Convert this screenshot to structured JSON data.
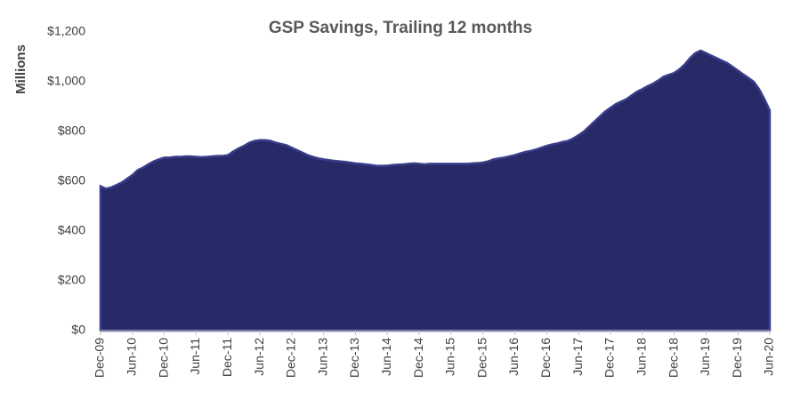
{
  "chart_data": {
    "type": "area",
    "title": "GSP Savings, Trailing 12 months",
    "y_label": "Millions",
    "color": "#272a66",
    "edge_color": "#3a3d8a",
    "categories": [
      "Dec-09",
      null,
      null,
      null,
      null,
      null,
      "Jun-10",
      null,
      null,
      null,
      null,
      null,
      "Dec-10",
      null,
      null,
      null,
      null,
      null,
      "Jun-11",
      null,
      null,
      null,
      null,
      null,
      "Dec-11",
      null,
      null,
      null,
      null,
      null,
      "Jun-12",
      null,
      null,
      null,
      null,
      null,
      "Dec-12",
      null,
      null,
      null,
      null,
      null,
      "Jun-13",
      null,
      null,
      null,
      null,
      null,
      "Dec-13",
      null,
      null,
      null,
      null,
      null,
      "Jun-14",
      null,
      null,
      null,
      null,
      null,
      "Dec-14",
      null,
      null,
      null,
      null,
      null,
      "Jun-15",
      null,
      null,
      null,
      null,
      null,
      "Dec-15",
      null,
      null,
      null,
      null,
      null,
      "Jun-16",
      null,
      null,
      null,
      null,
      null,
      "Dec-16",
      null,
      null,
      null,
      null,
      null,
      "Jun-17",
      null,
      null,
      null,
      null,
      null,
      "Dec-17",
      null,
      null,
      null,
      null,
      null,
      "Jun-18",
      null,
      null,
      null,
      null,
      null,
      "Dec-18",
      null,
      null,
      null,
      null,
      null,
      "Jun-19",
      null,
      null,
      null,
      null,
      null,
      "Dec-19",
      null,
      null,
      null,
      null,
      null,
      "Jun-20"
    ],
    "values": [
      580,
      570,
      575,
      585,
      595,
      610,
      625,
      645,
      655,
      668,
      680,
      688,
      695,
      695,
      698,
      698,
      700,
      700,
      698,
      697,
      698,
      700,
      702,
      702,
      705,
      720,
      732,
      742,
      755,
      762,
      765,
      765,
      762,
      755,
      750,
      745,
      735,
      725,
      715,
      705,
      698,
      692,
      688,
      685,
      682,
      680,
      678,
      675,
      672,
      670,
      668,
      665,
      662,
      662,
      663,
      665,
      667,
      668,
      670,
      672,
      670,
      668,
      670,
      670,
      670,
      670,
      670,
      670,
      670,
      670,
      672,
      673,
      675,
      680,
      688,
      692,
      695,
      700,
      705,
      712,
      718,
      722,
      728,
      735,
      742,
      748,
      752,
      758,
      762,
      772,
      785,
      800,
      820,
      840,
      860,
      880,
      895,
      910,
      920,
      930,
      945,
      960,
      970,
      982,
      992,
      1005,
      1020,
      1028,
      1035,
      1050,
      1070,
      1095,
      1115,
      1125,
      1115,
      1105,
      1095,
      1085,
      1075,
      1060,
      1045,
      1030,
      1015,
      1000,
      970,
      930,
      885
    ],
    "ylim": [
      0,
      1200
    ],
    "yticks": [
      {
        "value": 0,
        "label": "$0"
      },
      {
        "value": 200,
        "label": "$200"
      },
      {
        "value": 400,
        "label": "$400"
      },
      {
        "value": 600,
        "label": "$600"
      },
      {
        "value": 800,
        "label": "$800"
      },
      {
        "value": 1000,
        "label": "$1,000"
      },
      {
        "value": 1200,
        "label": "$1,200"
      }
    ],
    "grid": false
  }
}
